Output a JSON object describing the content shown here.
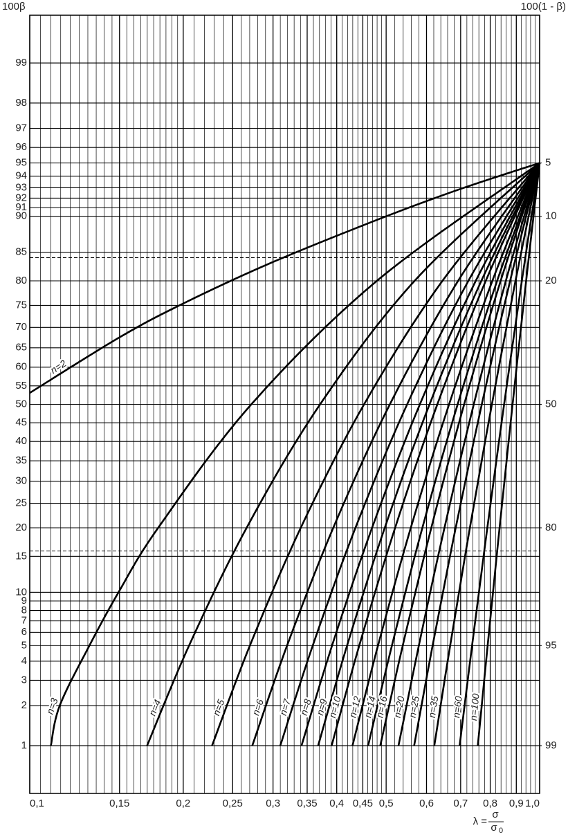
{
  "chart_data": {
    "type": "line",
    "ylabel": "100β",
    "y2label": "100(1 - β)",
    "xlabel": {
      "lhs": "λ =",
      "numerator": "σ",
      "denominator": "σ",
      "denominator_subscript": "0"
    },
    "xscale": "log",
    "yscale": "probability",
    "color": "#000000",
    "xlim": [
      0.1,
      1.0
    ],
    "ylim": [
      0.4,
      99.6
    ],
    "y2lim": [
      99.6,
      0.4
    ],
    "xticks": [
      {
        "value": 0.1,
        "label": "0,1"
      },
      {
        "value": 0.15,
        "label": "0,15"
      },
      {
        "value": 0.2,
        "label": "0,2"
      },
      {
        "value": 0.25,
        "label": "0,25"
      },
      {
        "value": 0.3,
        "label": "0,3"
      },
      {
        "value": 0.35,
        "label": "0,35"
      },
      {
        "value": 0.4,
        "label": "0,4"
      },
      {
        "value": 0.45,
        "label": "0,45"
      },
      {
        "value": 0.5,
        "label": "0,5"
      },
      {
        "value": 0.6,
        "label": "0,6"
      },
      {
        "value": 0.7,
        "label": "0,7"
      },
      {
        "value": 0.8,
        "label": "0,8"
      },
      {
        "value": 0.9,
        "label": "0,9"
      },
      {
        "value": 1.0,
        "label": "1,0"
      }
    ],
    "minor_grid": [
      {
        "from": 0.1,
        "to": 0.2,
        "step": 0.005
      },
      {
        "from": 0.2,
        "to": 0.5,
        "step": 0.01
      },
      {
        "from": 0.5,
        "to": 1.0,
        "step": 0.02
      }
    ],
    "yticks": [
      1,
      2,
      3,
      4,
      5,
      6,
      7,
      8,
      9,
      10,
      15,
      20,
      25,
      30,
      35,
      40,
      45,
      50,
      55,
      60,
      65,
      70,
      75,
      80,
      85,
      90,
      91,
      92,
      93,
      94,
      95,
      96,
      97,
      98,
      99
    ],
    "y2ticks": [
      5,
      10,
      20,
      50,
      80,
      95,
      99
    ],
    "dashed_lines": [
      84.13,
      15.87
    ],
    "grid": true,
    "series": [
      {
        "name": "n=2",
        "x": [
          0.1,
          0.15,
          0.2,
          0.3,
          0.5,
          0.7,
          1.0
        ],
        "values": [
          53.1,
          67.6,
          75.4,
          83.4,
          90.0,
          92.9,
          95
        ]
      },
      {
        "name": "n=3",
        "x": [
          0.11,
          0.1145,
          0.1309,
          0.1493,
          0.1786,
          0.272,
          0.4795,
          1.0
        ],
        "values": [
          1,
          2,
          5,
          10,
          20,
          50,
          80,
          95
        ]
      },
      {
        "name": "n=4",
        "x": [
          0.1699,
          0.2053,
          0.2663,
          0.3711,
          0.5685,
          1.0
        ],
        "values": [
          1,
          5,
          20,
          50,
          80,
          95
        ]
      },
      {
        "name": "n=5",
        "x": [
          0.2278,
          0.2702,
          0.34,
          0.4526,
          0.6448,
          1.0
        ],
        "values": [
          1,
          5,
          20,
          50,
          80,
          95
        ]
      },
      {
        "name": "n=6",
        "x": [
          0.2732,
          0.3196,
          0.3938,
          0.5085,
          0.6921,
          1.0
        ],
        "values": [
          1,
          5,
          20,
          50,
          80,
          95
        ]
      },
      {
        "name": "n=7",
        "x": [
          0.31,
          0.3589,
          0.4353,
          0.5498,
          0.7249,
          1.0
        ],
        "values": [
          1,
          5,
          20,
          50,
          80,
          95
        ]
      },
      {
        "name": "n=8",
        "x": [
          0.3412,
          0.3916,
          0.4692,
          0.5823,
          0.7495,
          1.0
        ],
        "values": [
          1,
          5,
          20,
          50,
          80,
          95
        ]
      },
      {
        "name": "n=9",
        "x": [
          0.3678,
          0.4191,
          0.4969,
          0.6083,
          0.7686,
          1.0
        ],
        "values": [
          1,
          5,
          20,
          50,
          80,
          95
        ]
      },
      {
        "name": "n=10",
        "x": [
          0.3909,
          0.4428,
          0.5207,
          0.6301,
          0.7841,
          1.0
        ],
        "values": [
          1,
          5,
          20,
          50,
          80,
          95
        ]
      },
      {
        "name": "n=12",
        "x": [
          0.4295,
          0.4819,
          0.5589,
          0.6644,
          0.8078,
          1.0
        ],
        "values": [
          1,
          5,
          20,
          50,
          80,
          95
        ]
      },
      {
        "name": "n=14",
        "x": [
          0.4609,
          0.5132,
          0.5889,
          0.6906,
          0.8253,
          1.0
        ],
        "values": [
          1,
          5,
          20,
          50,
          80,
          95
        ]
      },
      {
        "name": "n=16",
        "x": [
          0.4869,
          0.5389,
          0.6131,
          0.7112,
          0.8386,
          1.0
        ],
        "values": [
          1,
          5,
          20,
          50,
          80,
          95
        ]
      },
      {
        "name": "n=20",
        "x": [
          0.5287,
          0.5795,
          0.6507,
          0.7427,
          0.8585,
          1.0
        ],
        "values": [
          1,
          5,
          20,
          50,
          80,
          95
        ]
      },
      {
        "name": "n=25",
        "x": [
          0.5674,
          0.6167,
          0.6845,
          0.7701,
          0.8753,
          1.0
        ],
        "values": [
          1,
          5,
          20,
          50,
          80,
          95
        ]
      },
      {
        "name": "n=35",
        "x": [
          0.6215,
          0.6676,
          0.7298,
          0.8061,
          0.8967,
          1.0
        ],
        "values": [
          1,
          5,
          20,
          50,
          80,
          95
        ]
      },
      {
        "name": "n=60",
        "x": [
          0.6968,
          0.737,
          0.7896,
          0.8518,
          0.9228,
          1.0
        ],
        "values": [
          1,
          5,
          20,
          50,
          80,
          95
        ]
      },
      {
        "name": "n=100",
        "x": [
          0.7564,
          0.7907,
          0.8345,
          0.885,
          0.9409,
          1.0
        ],
        "values": [
          1,
          5,
          20,
          50,
          80,
          95
        ]
      }
    ]
  }
}
